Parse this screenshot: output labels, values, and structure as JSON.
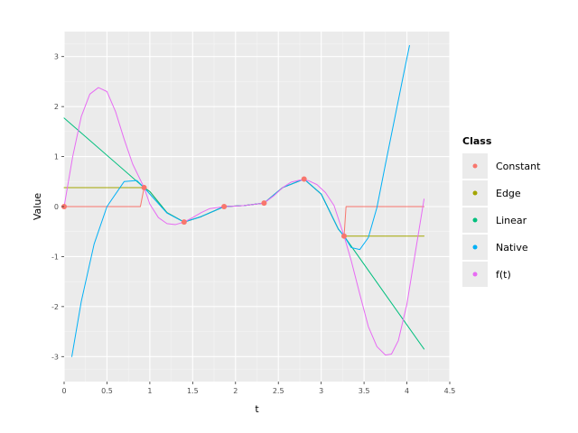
{
  "chart_data": {
    "type": "line",
    "title": "",
    "xlabel": "t",
    "ylabel": "Value",
    "xlim": [
      0,
      4.5
    ],
    "ylim": [
      -3.5,
      3.5
    ],
    "xticks": [
      "0",
      "0.5",
      "1",
      "1.5",
      "2",
      "2.5",
      "3",
      "3.5",
      "4",
      "4.5"
    ],
    "xtick_values": [
      0,
      0.5,
      1,
      1.5,
      2,
      2.5,
      3,
      3.5,
      4,
      4.5
    ],
    "yticks": [
      "-3",
      "-2",
      "-1",
      "0",
      "1",
      "2",
      "3"
    ],
    "ytick_values": [
      -3,
      -2,
      -1,
      0,
      1,
      2,
      3
    ],
    "grid": true,
    "legend": {
      "title": "Class",
      "position": "right"
    },
    "points": {
      "name": "points",
      "color": "#f8766d",
      "x": [
        0.0,
        0.933,
        1.4,
        1.867,
        2.333,
        2.8,
        3.267
      ],
      "y": [
        0.0,
        0.38,
        -0.31,
        0.0,
        0.07,
        0.55,
        -0.59
      ]
    },
    "series": [
      {
        "name": "Constant",
        "color": "#f8766d",
        "x": [
          0.0,
          0.89,
          0.933,
          1.0,
          1.2,
          1.4,
          1.6,
          1.867,
          2.1,
          2.333,
          2.55,
          2.8,
          3.0,
          3.2,
          3.267,
          3.29,
          4.2
        ],
        "y": [
          0.0,
          0.0,
          0.38,
          0.3,
          -0.12,
          -0.31,
          -0.2,
          0.0,
          0.02,
          0.07,
          0.38,
          0.55,
          0.25,
          -0.45,
          -0.59,
          0.0,
          0.0
        ]
      },
      {
        "name": "Edge",
        "color": "#a3a500",
        "x": [
          0.0,
          0.933,
          1.0,
          1.2,
          1.4,
          1.6,
          1.867,
          2.1,
          2.333,
          2.55,
          2.8,
          3.0,
          3.2,
          3.267,
          4.2
        ],
        "y": [
          0.38,
          0.38,
          0.3,
          -0.12,
          -0.31,
          -0.2,
          0.0,
          0.02,
          0.07,
          0.38,
          0.55,
          0.25,
          -0.45,
          -0.59,
          -0.59
        ]
      },
      {
        "name": "Linear",
        "color": "#00bf7d",
        "x": [
          0.0,
          0.933,
          1.0,
          1.2,
          1.4,
          1.6,
          1.867,
          2.1,
          2.333,
          2.55,
          2.8,
          3.0,
          3.2,
          3.267,
          4.2
        ],
        "y": [
          1.77,
          0.38,
          0.3,
          -0.12,
          -0.31,
          -0.2,
          0.0,
          0.02,
          0.07,
          0.38,
          0.55,
          0.25,
          -0.45,
          -0.59,
          -2.85
        ]
      },
      {
        "name": "Native",
        "color": "#00b0f6",
        "x": [
          0.09,
          0.2,
          0.35,
          0.5,
          0.7,
          0.85,
          0.933,
          1.0,
          1.2,
          1.4,
          1.6,
          1.867,
          2.1,
          2.333,
          2.55,
          2.8,
          3.0,
          3.2,
          3.267,
          3.35,
          3.45,
          3.55,
          3.65,
          3.75,
          3.85,
          3.95,
          4.03
        ],
        "y": [
          -3.0,
          -1.9,
          -0.75,
          0.0,
          0.5,
          0.52,
          0.38,
          0.25,
          -0.13,
          -0.31,
          -0.2,
          0.0,
          0.02,
          0.07,
          0.38,
          0.55,
          0.25,
          -0.45,
          -0.59,
          -0.82,
          -0.86,
          -0.62,
          -0.02,
          0.85,
          1.7,
          2.55,
          3.22
        ]
      },
      {
        "name": "f(t)",
        "color": "#e76bf3",
        "x": [
          0.0,
          0.1,
          0.2,
          0.3,
          0.4,
          0.5,
          0.6,
          0.7,
          0.8,
          0.933,
          1.0,
          1.1,
          1.2,
          1.3,
          1.4,
          1.5,
          1.6,
          1.7,
          1.867,
          2.0,
          2.1,
          2.2,
          2.333,
          2.45,
          2.55,
          2.65,
          2.75,
          2.85,
          2.95,
          3.05,
          3.15,
          3.267,
          3.35,
          3.45,
          3.55,
          3.65,
          3.75,
          3.82,
          3.9,
          4.0,
          4.1,
          4.2
        ],
        "y": [
          0.0,
          1.0,
          1.8,
          2.25,
          2.38,
          2.3,
          1.9,
          1.35,
          0.85,
          0.38,
          0.05,
          -0.22,
          -0.34,
          -0.36,
          -0.31,
          -0.22,
          -0.12,
          -0.04,
          0.0,
          0.01,
          0.02,
          0.04,
          0.07,
          0.22,
          0.38,
          0.49,
          0.53,
          0.52,
          0.44,
          0.28,
          0.02,
          -0.59,
          -1.08,
          -1.75,
          -2.4,
          -2.8,
          -2.97,
          -2.95,
          -2.68,
          -1.95,
          -0.9,
          0.15
        ]
      }
    ]
  }
}
